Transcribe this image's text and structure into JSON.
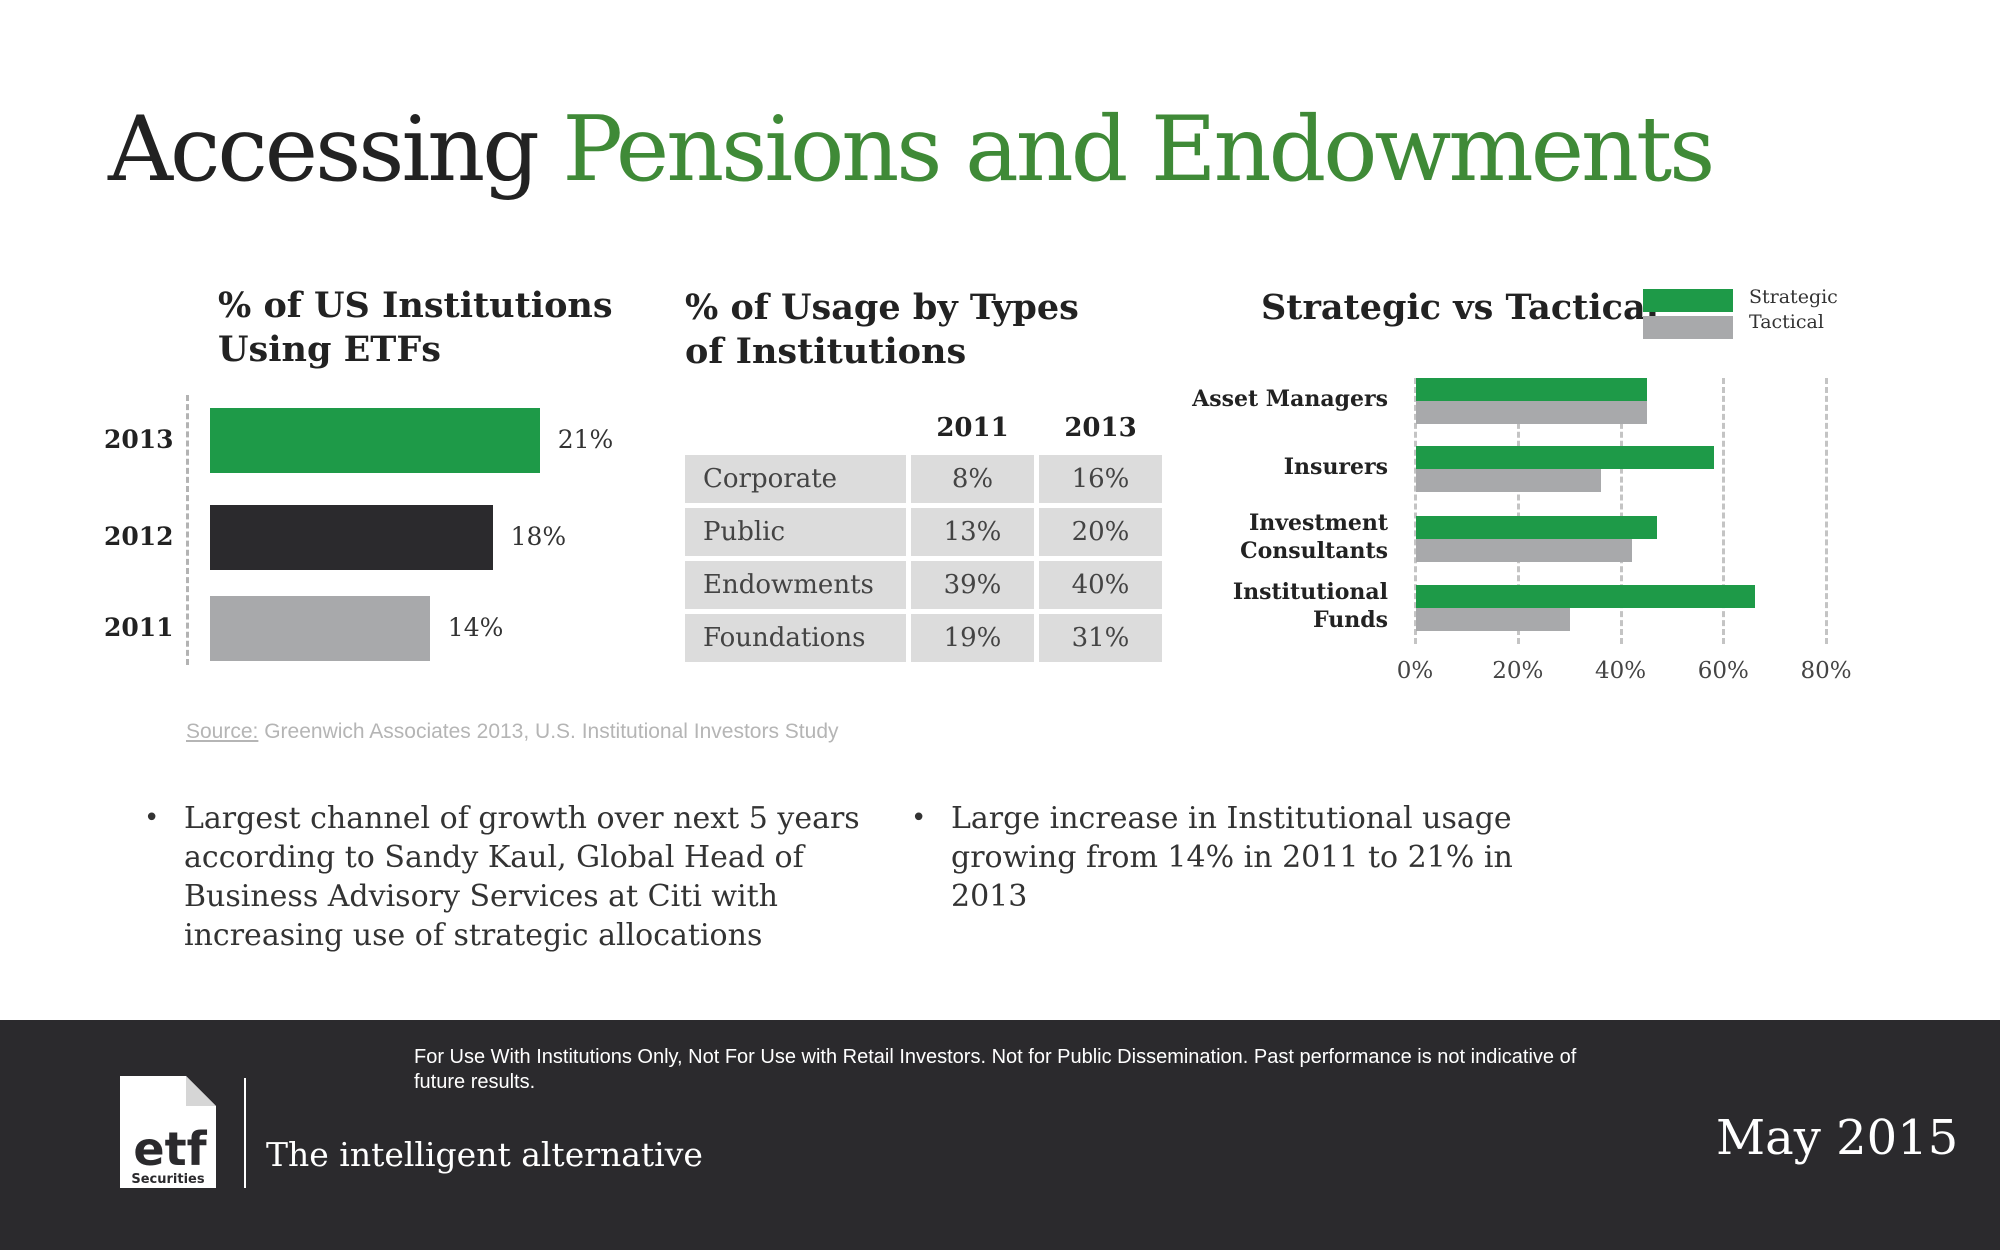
{
  "title": {
    "part1": "Accessing",
    "part2": "Pensions and Endowments"
  },
  "colors": {
    "green": "#1e9a48",
    "title_green": "#3f8a37",
    "dark": "#2b2a2d",
    "gray": "#a8a9ab",
    "table_cell": "#dcdcdc",
    "footer": "#2b2a2d"
  },
  "chart_data": [
    {
      "type": "bar",
      "orientation": "horizontal",
      "title": [
        "% of US Institutions",
        "Using ETFs"
      ],
      "categories": [
        "2013",
        "2012",
        "2011"
      ],
      "values": [
        21,
        18,
        14
      ],
      "data_labels": [
        "21%",
        "18%",
        "14%"
      ],
      "bar_colors": [
        "#1e9a48",
        "#2b2a2d",
        "#a8a9ab"
      ]
    },
    {
      "type": "table",
      "title": [
        "% of Usage by Types",
        "of Institutions"
      ],
      "columns": [
        "2011",
        "2013"
      ],
      "rows": [
        {
          "name": "Corporate",
          "values": [
            "8%",
            "16%"
          ]
        },
        {
          "name": "Public",
          "values": [
            "13%",
            "20%"
          ]
        },
        {
          "name": "Endowments",
          "values": [
            "39%",
            "40%"
          ]
        },
        {
          "name": "Foundations",
          "values": [
            "19%",
            "31%"
          ]
        }
      ]
    },
    {
      "type": "bar",
      "orientation": "horizontal",
      "title": "Strategic vs Tactical",
      "categories": [
        [
          "Asset Managers"
        ],
        [
          "Insurers"
        ],
        [
          "Investment",
          "Consultants"
        ],
        [
          "Institutional",
          "Funds"
        ]
      ],
      "series": [
        {
          "name": "Strategic",
          "color": "#1e9a48",
          "values": [
            45,
            58,
            47,
            66
          ]
        },
        {
          "name": "Tactical",
          "color": "#a8a9ab",
          "values": [
            45,
            36,
            42,
            30
          ]
        }
      ],
      "xlim": [
        0,
        80
      ],
      "xticks": [
        0,
        20,
        40,
        60,
        80
      ],
      "xtick_labels": [
        "0%",
        "20%",
        "40%",
        "60%",
        "80%"
      ],
      "grid": "dashed vertical",
      "legend": "top-right"
    }
  ],
  "source": {
    "label": "Source:",
    "text": " Greenwich Associates 2013, U.S. Institutional Investors Study"
  },
  "bullets": [
    {
      "dot": "•",
      "text": "Largest channel of growth over next 5 years according to Sandy Kaul, Global Head of Business Advisory Services at Citi with increasing use of strategic allocations"
    },
    {
      "dot": "•",
      "text": "Large increase in Institutional usage growing from 14% in 2011 to 21% in 2013"
    }
  ],
  "footer": {
    "disclaimer": "For Use With Institutions Only, Not For Use with Retail Investors. Not for Public Dissemination. Past performance is not indicative of future results.",
    "tagline": "The intelligent alternative",
    "date": "May 2015",
    "logo_text": "etf",
    "logo_subtext": "Securities"
  }
}
